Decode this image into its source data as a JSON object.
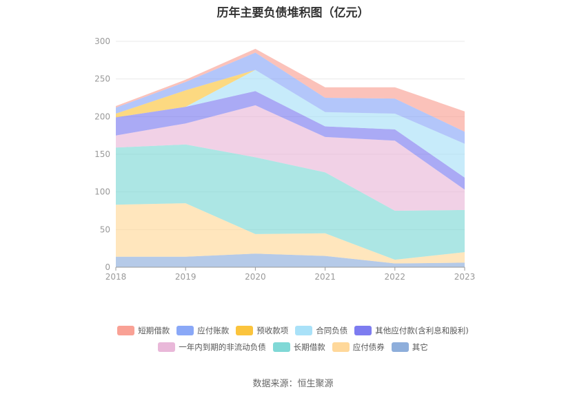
{
  "chart_data": {
    "type": "area",
    "title": "历年主要负债堆积图（亿元）",
    "categories": [
      "2018",
      "2019",
      "2020",
      "2021",
      "2022",
      "2023"
    ],
    "ylim": [
      0,
      300
    ],
    "yticks": [
      0,
      50,
      100,
      150,
      200,
      250,
      300
    ],
    "grid": true,
    "legend_position": "bottom",
    "series": [
      {
        "name": "其它",
        "color": "#8eaedb",
        "values": [
          14,
          14,
          18,
          15,
          5,
          6
        ]
      },
      {
        "name": "应付债券",
        "color": "#ffd89a",
        "values": [
          69,
          71,
          26,
          30,
          5,
          14
        ]
      },
      {
        "name": "长期借款",
        "color": "#80d8d6",
        "values": [
          76,
          78,
          102,
          81,
          65,
          56
        ]
      },
      {
        "name": "一年内到期的非流动负债",
        "color": "#e9b8d9",
        "values": [
          16,
          28,
          69,
          47,
          93,
          27
        ]
      },
      {
        "name": "其他应付款(含利息和股利)",
        "color": "#7d7cf0",
        "values": [
          24,
          22,
          19,
          14,
          15,
          16
        ]
      },
      {
        "name": "合同负债",
        "color": "#a9e1f8",
        "values": [
          0,
          0,
          28,
          19,
          21,
          45
        ]
      },
      {
        "name": "预收款项",
        "color": "#fbc43d",
        "values": [
          5,
          22,
          0,
          0,
          0,
          0
        ]
      },
      {
        "name": "应付账款",
        "color": "#8aa8f7",
        "values": [
          8,
          11,
          23,
          19,
          20,
          16
        ]
      },
      {
        "name": "短期借款",
        "color": "#f9a195",
        "values": [
          2,
          3,
          5,
          14,
          15,
          27
        ]
      }
    ],
    "legend_rows": [
      [
        "短期借款",
        "应付账款",
        "预收款项",
        "合同负债",
        "其他应付款(含利息和股利)"
      ],
      [
        "一年内到期的非流动负债",
        "长期借款",
        "应付债券",
        "其它"
      ]
    ]
  },
  "source": "数据来源：恒生聚源"
}
